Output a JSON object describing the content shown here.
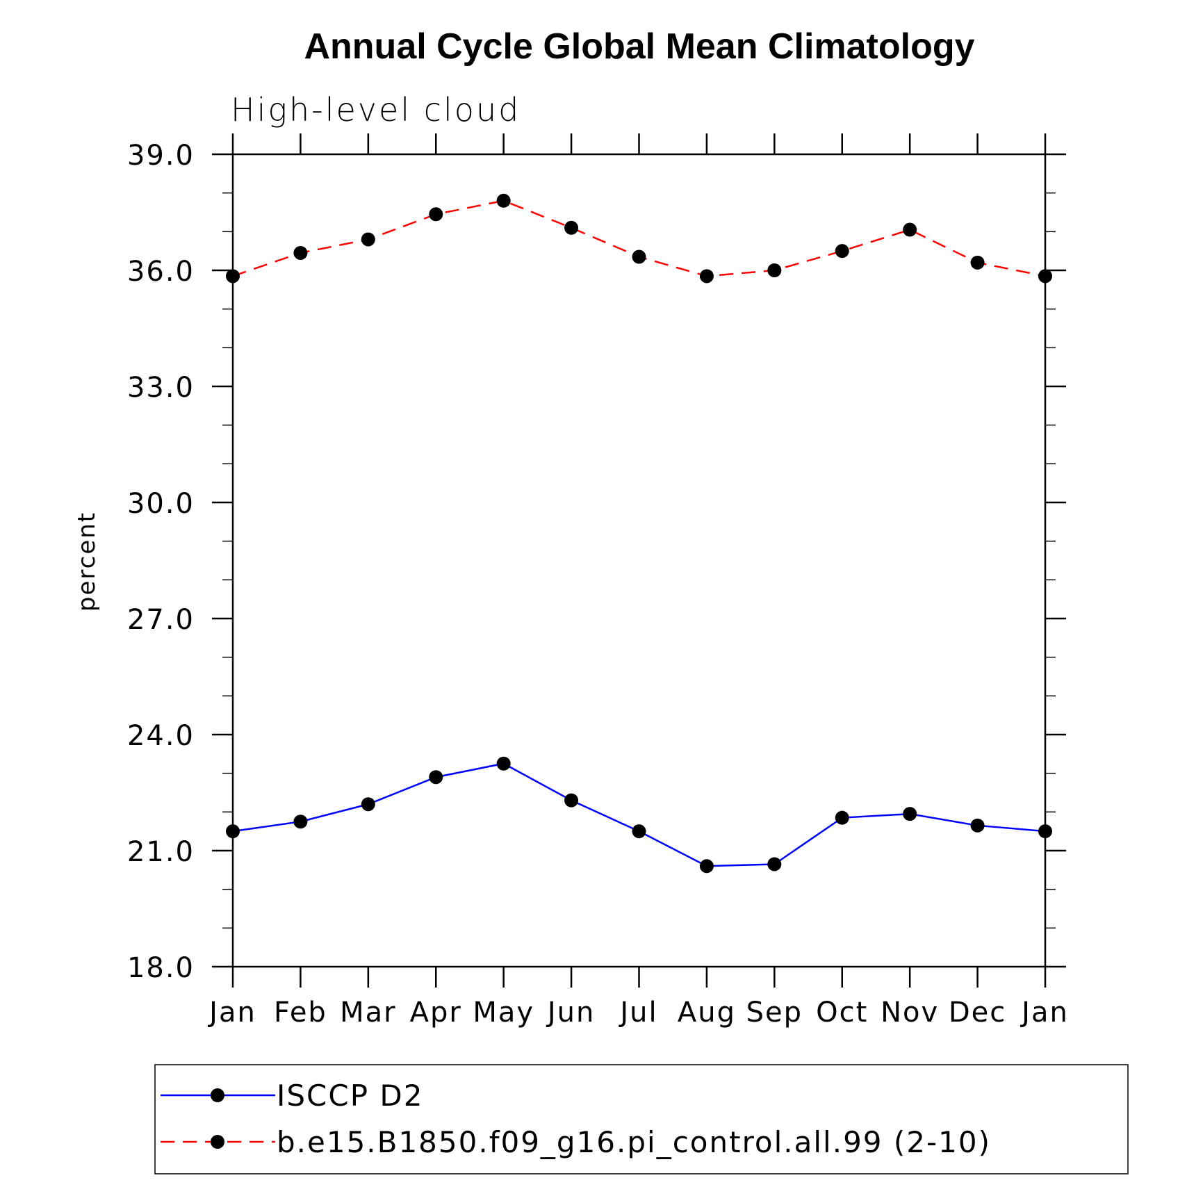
{
  "chart_data": {
    "type": "line",
    "title": "Annual Cycle Global Mean Climatology",
    "subtitle": "High-level cloud",
    "xlabel": "",
    "ylabel": "percent",
    "categories": [
      "Jan",
      "Feb",
      "Mar",
      "Apr",
      "May",
      "Jun",
      "Jul",
      "Aug",
      "Sep",
      "Oct",
      "Nov",
      "Dec",
      "Jan"
    ],
    "ylim": [
      18.0,
      39.0
    ],
    "yticks": [
      "18.0",
      "21.0",
      "24.0",
      "27.0",
      "30.0",
      "33.0",
      "36.0",
      "39.0"
    ],
    "grid": false,
    "legend_position": "bottom",
    "series": [
      {
        "name": "ISCCP D2",
        "color": "#0000ff",
        "line_style": "solid",
        "marker": "filled-circle",
        "values": [
          21.5,
          21.75,
          22.2,
          22.9,
          23.25,
          22.3,
          21.5,
          20.6,
          20.65,
          21.85,
          21.95,
          21.65,
          21.5
        ]
      },
      {
        "name": "b.e15.B1850.f09_g16.pi_control.all.99 (2-10)",
        "color": "#ff0000",
        "line_style": "dashed",
        "marker": "filled-circle",
        "values": [
          35.85,
          36.45,
          36.8,
          37.45,
          37.8,
          37.1,
          36.35,
          35.85,
          36.0,
          36.5,
          37.05,
          36.2,
          35.85
        ]
      }
    ]
  }
}
